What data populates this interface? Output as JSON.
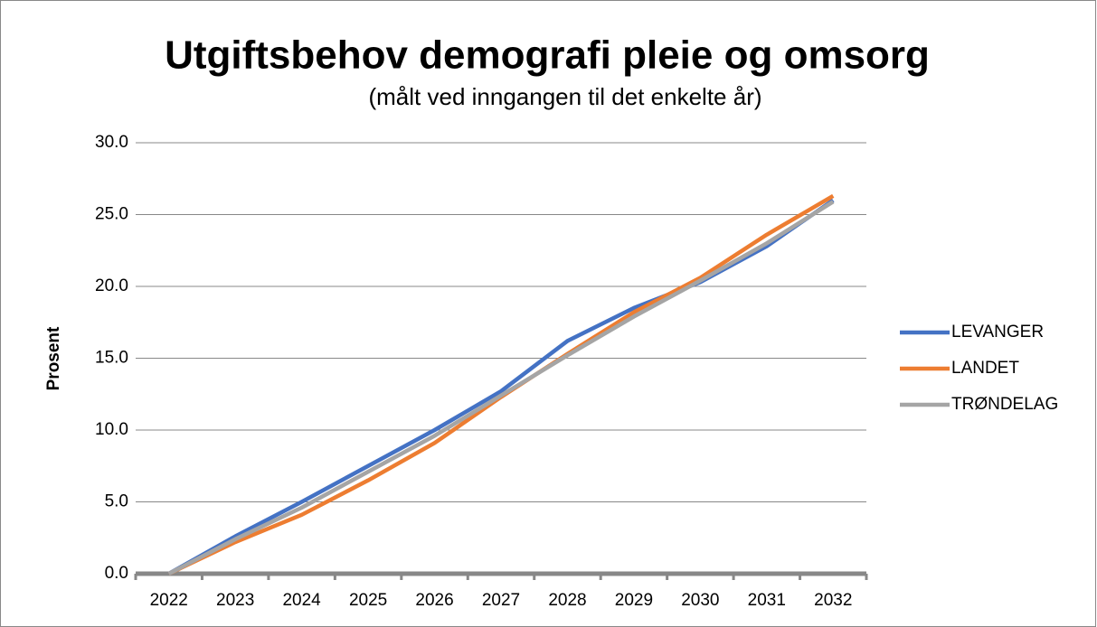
{
  "chart_data": {
    "type": "line",
    "title": "Utgiftsbehov demografi pleie og omsorg",
    "subtitle": "(målt ved inngangen til det enkelte år)",
    "y_label": "Prosent",
    "categories": [
      "2022",
      "2023",
      "2024",
      "2025",
      "2026",
      "2027",
      "2028",
      "2029",
      "2030",
      "2031",
      "2032"
    ],
    "series": [
      {
        "name": "LEVANGER",
        "color": "#4472c4",
        "values": [
          0,
          2.6,
          5.0,
          7.5,
          10.0,
          12.7,
          16.2,
          18.5,
          20.3,
          22.8,
          26.0
        ]
      },
      {
        "name": "LANDET",
        "color": "#ed7d31",
        "values": [
          0,
          2.2,
          4.1,
          6.5,
          9.1,
          12.3,
          15.3,
          18.2,
          20.6,
          23.6,
          26.3
        ]
      },
      {
        "name": "TRØNDELAG",
        "color": "#a5a5a5",
        "values": [
          0,
          2.4,
          4.6,
          7.1,
          9.6,
          12.4,
          15.2,
          17.9,
          20.4,
          23.0,
          25.9
        ]
      }
    ],
    "ylim": [
      0,
      30
    ],
    "yticks": [
      {
        "value": 0,
        "label": "0.0"
      },
      {
        "value": 5,
        "label": "5.0"
      },
      {
        "value": 10,
        "label": "10.0"
      },
      {
        "value": 15,
        "label": "15.0"
      },
      {
        "value": 20,
        "label": "20.0"
      },
      {
        "value": 25,
        "label": "25.0"
      },
      {
        "value": 30,
        "label": "30.0"
      }
    ],
    "grid": true,
    "legend": "right"
  }
}
